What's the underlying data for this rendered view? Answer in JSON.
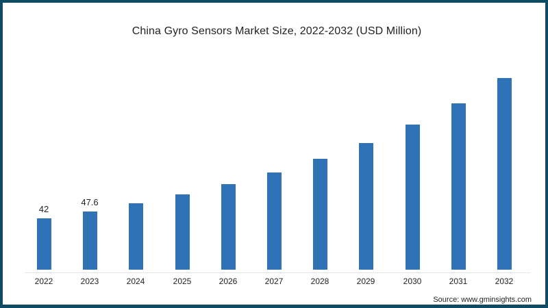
{
  "chart_data": {
    "type": "bar",
    "title": "China Gyro Sensors Market Size, 2022-2032 (USD Million)",
    "xlabel": "",
    "ylabel": "",
    "categories": [
      "2022",
      "2023",
      "2024",
      "2025",
      "2026",
      "2027",
      "2028",
      "2029",
      "2030",
      "2031",
      "2032"
    ],
    "values": [
      42,
      47.6,
      54.3,
      61.6,
      70,
      79.5,
      90.7,
      103.6,
      118.7,
      136,
      156.8
    ],
    "data_labels": [
      "42",
      "47.6",
      "",
      "",
      "",
      "",
      "",
      "",
      "",
      "",
      ""
    ],
    "ylim": [
      0,
      160
    ],
    "grid": false,
    "legend": null,
    "bar_color": "#2f72b5",
    "annotations": [
      "Source: www.gminsights.com"
    ]
  },
  "frame": {
    "border_color": "#0f4a63"
  },
  "source_text": "Source: www.gminsights.com"
}
